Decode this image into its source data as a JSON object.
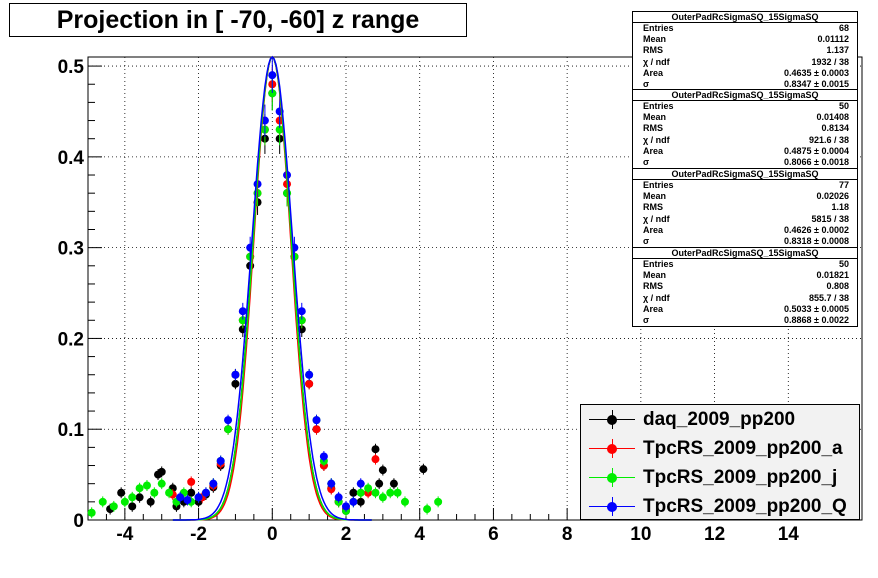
{
  "title": "Projection in [ -70, -60] z range",
  "chart_data": {
    "type": "scatter",
    "xlim": [
      -5,
      16
    ],
    "ylim": [
      0,
      0.51
    ],
    "x_ticks": [
      -4,
      -2,
      0,
      2,
      4,
      6,
      8,
      10,
      12,
      14
    ],
    "y_ticks": [
      0,
      0.1,
      0.2,
      0.3,
      0.4,
      0.5
    ],
    "x_tick_labels": [
      "-4",
      "-2",
      "0",
      "2",
      "4",
      "6",
      "8",
      "10",
      "12",
      "14"
    ],
    "y_tick_labels": [
      "0",
      "0.1",
      "0.2",
      "0.3",
      "0.4",
      "0.5"
    ],
    "grid": true,
    "legend_position": "bottom-right",
    "series": [
      {
        "name": "daq_2009_pp200",
        "color": "#000000",
        "fit_sigma": 0.8347,
        "points": [
          [
            -4.4,
            0.012
          ],
          [
            -4.1,
            0.03
          ],
          [
            -3.8,
            0.015
          ],
          [
            -3.6,
            0.025
          ],
          [
            -3.3,
            0.02
          ],
          [
            -3.1,
            0.05
          ],
          [
            -3.0,
            0.053
          ],
          [
            -2.7,
            0.035
          ],
          [
            -2.6,
            0.015
          ],
          [
            -2.4,
            0.02
          ],
          [
            -2.2,
            0.03
          ],
          [
            -2.0,
            0.02
          ],
          [
            -1.8,
            0.028
          ],
          [
            -1.6,
            0.036
          ],
          [
            -1.4,
            0.06
          ],
          [
            -1.2,
            0.1
          ],
          [
            -1.0,
            0.15
          ],
          [
            -0.8,
            0.21
          ],
          [
            -0.6,
            0.28
          ],
          [
            -0.4,
            0.35
          ],
          [
            -0.2,
            0.42
          ],
          [
            0.0,
            0.47
          ],
          [
            0.2,
            0.42
          ],
          [
            0.4,
            0.36
          ],
          [
            0.6,
            0.29
          ],
          [
            0.8,
            0.21
          ],
          [
            1.0,
            0.15
          ],
          [
            1.2,
            0.1
          ],
          [
            1.4,
            0.06
          ],
          [
            1.6,
            0.035
          ],
          [
            1.8,
            0.02
          ],
          [
            2.0,
            0.01
          ],
          [
            2.2,
            0.03
          ],
          [
            2.4,
            0.02
          ],
          [
            2.8,
            0.078
          ],
          [
            2.9,
            0.04
          ],
          [
            3.0,
            0.055
          ],
          [
            3.3,
            0.04
          ],
          [
            4.1,
            0.056
          ]
        ]
      },
      {
        "name": "TpcRS_2009_pp200_a",
        "color": "#ff0000",
        "fit_sigma": 0.8066,
        "points": [
          [
            -2.7,
            0.028
          ],
          [
            -2.2,
            0.042
          ],
          [
            -1.9,
            0.025
          ],
          [
            -1.6,
            0.038
          ],
          [
            -1.4,
            0.062
          ],
          [
            -1.2,
            0.1
          ],
          [
            -1.0,
            0.16
          ],
          [
            -0.8,
            0.22
          ],
          [
            -0.6,
            0.29
          ],
          [
            -0.4,
            0.36
          ],
          [
            -0.2,
            0.43
          ],
          [
            0.0,
            0.48
          ],
          [
            0.2,
            0.44
          ],
          [
            0.4,
            0.37
          ],
          [
            0.6,
            0.29
          ],
          [
            0.8,
            0.22
          ],
          [
            1.0,
            0.15
          ],
          [
            1.2,
            0.1
          ],
          [
            1.4,
            0.06
          ],
          [
            1.6,
            0.034
          ],
          [
            1.8,
            0.02
          ],
          [
            2.0,
            0.012
          ],
          [
            2.6,
            0.03
          ],
          [
            2.8,
            0.067
          ]
        ]
      },
      {
        "name": "TpcRS_2009_pp200_j",
        "color": "#00ee00",
        "fit_sigma": 0.8318,
        "points": [
          [
            -4.9,
            0.008
          ],
          [
            -4.6,
            0.02
          ],
          [
            -4.3,
            0.015
          ],
          [
            -4.0,
            0.02
          ],
          [
            -3.8,
            0.025
          ],
          [
            -3.6,
            0.035
          ],
          [
            -3.4,
            0.038
          ],
          [
            -3.2,
            0.03
          ],
          [
            -3.0,
            0.04
          ],
          [
            -2.8,
            0.03
          ],
          [
            -2.6,
            0.02
          ],
          [
            -2.4,
            0.03
          ],
          [
            -2.2,
            0.02
          ],
          [
            -2.0,
            0.025
          ],
          [
            -1.8,
            0.03
          ],
          [
            -1.6,
            0.04
          ],
          [
            -1.4,
            0.065
          ],
          [
            -1.2,
            0.1
          ],
          [
            -1.0,
            0.16
          ],
          [
            -0.8,
            0.22
          ],
          [
            -0.6,
            0.29
          ],
          [
            -0.4,
            0.36
          ],
          [
            -0.2,
            0.43
          ],
          [
            0.0,
            0.47
          ],
          [
            0.2,
            0.43
          ],
          [
            0.4,
            0.36
          ],
          [
            0.6,
            0.29
          ],
          [
            0.8,
            0.22
          ],
          [
            1.0,
            0.16
          ],
          [
            1.2,
            0.11
          ],
          [
            1.4,
            0.065
          ],
          [
            1.6,
            0.04
          ],
          [
            1.8,
            0.02
          ],
          [
            2.0,
            0.01
          ],
          [
            2.2,
            0.02
          ],
          [
            2.4,
            0.03
          ],
          [
            2.6,
            0.035
          ],
          [
            2.8,
            0.03
          ],
          [
            3.0,
            0.025
          ],
          [
            3.2,
            0.03
          ],
          [
            3.4,
            0.03
          ],
          [
            3.6,
            0.02
          ],
          [
            4.2,
            0.012
          ],
          [
            4.5,
            0.02
          ]
        ]
      },
      {
        "name": "TpcRS_2009_pp200_Q",
        "color": "#0000ff",
        "fit_sigma": 0.8868,
        "points": [
          [
            -2.5,
            0.025
          ],
          [
            -2.3,
            0.022
          ],
          [
            -2.0,
            0.025
          ],
          [
            -1.8,
            0.03
          ],
          [
            -1.6,
            0.04
          ],
          [
            -1.4,
            0.065
          ],
          [
            -1.2,
            0.11
          ],
          [
            -1.0,
            0.16
          ],
          [
            -0.8,
            0.23
          ],
          [
            -0.6,
            0.3
          ],
          [
            -0.4,
            0.37
          ],
          [
            -0.2,
            0.44
          ],
          [
            0.0,
            0.49
          ],
          [
            0.2,
            0.45
          ],
          [
            0.4,
            0.38
          ],
          [
            0.6,
            0.3
          ],
          [
            0.8,
            0.23
          ],
          [
            1.0,
            0.16
          ],
          [
            1.2,
            0.11
          ],
          [
            1.4,
            0.07
          ],
          [
            1.6,
            0.04
          ],
          [
            1.8,
            0.025
          ],
          [
            2.0,
            0.015
          ],
          [
            2.2,
            0.02
          ],
          [
            2.4,
            0.04
          ]
        ]
      }
    ]
  },
  "stats_boxes": [
    {
      "header": "OuterPadRcSigmaSQ_15SigmaSQ",
      "rows": [
        {
          "label": "Entries",
          "value": "68"
        },
        {
          "label": "Mean",
          "value": "0.01112"
        },
        {
          "label": "RMS",
          "value": "1.137"
        },
        {
          "label": "χ  / ndf",
          "value": "1932 / 38"
        },
        {
          "label": "Area",
          "value": "0.4635 ± 0.0003"
        },
        {
          "label": "σ",
          "value": "0.8347 ± 0.0015"
        }
      ]
    },
    {
      "header": "OuterPadRcSigmaSQ_15SigmaSQ",
      "rows": [
        {
          "label": "Entries",
          "value": "50"
        },
        {
          "label": "Mean",
          "value": "0.01408"
        },
        {
          "label": "RMS",
          "value": "0.8134"
        },
        {
          "label": "χ  / ndf",
          "value": "921.6 / 38"
        },
        {
          "label": "Area",
          "value": "0.4875 ± 0.0004"
        },
        {
          "label": "σ",
          "value": "0.8066 ± 0.0018"
        }
      ]
    },
    {
      "header": "OuterPadRcSigmaSQ_15SigmaSQ",
      "rows": [
        {
          "label": "Entries",
          "value": "77"
        },
        {
          "label": "Mean",
          "value": "0.02026"
        },
        {
          "label": "RMS",
          "value": "1.18"
        },
        {
          "label": "χ  / ndf",
          "value": "5815 / 38"
        },
        {
          "label": "Area",
          "value": "0.4626 ± 0.0002"
        },
        {
          "label": "σ",
          "value": "0.8318 ± 0.0008"
        }
      ]
    },
    {
      "header": "OuterPadRcSigmaSQ_15SigmaSQ",
      "rows": [
        {
          "label": "Entries",
          "value": "50"
        },
        {
          "label": "Mean",
          "value": "0.01821"
        },
        {
          "label": "RMS",
          "value": "0.808"
        },
        {
          "label": "χ  / ndf",
          "value": "855.7 / 38"
        },
        {
          "label": "Area",
          "value": "0.5033 ± 0.0005"
        },
        {
          "label": "σ",
          "value": "0.8868 ± 0.0022"
        }
      ]
    }
  ]
}
